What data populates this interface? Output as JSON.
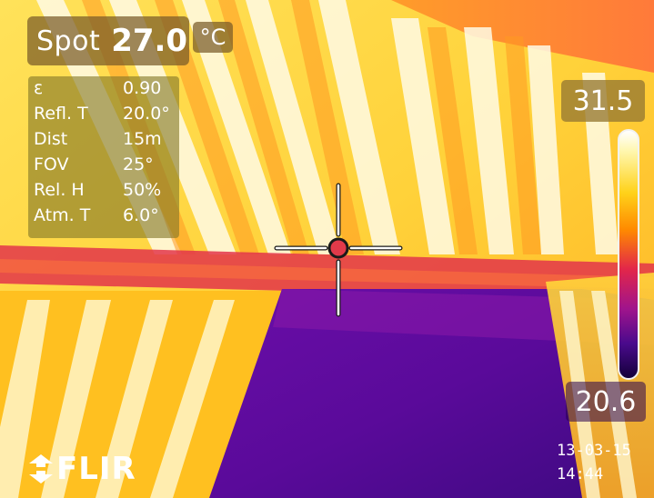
{
  "spot": {
    "label": "Spot",
    "value": "27.0",
    "unit": "°C"
  },
  "parameters": [
    {
      "name": "ε",
      "value": "0.90"
    },
    {
      "name": "Refl. T",
      "value": "20.0°"
    },
    {
      "name": "Dist",
      "value": "15m"
    },
    {
      "name": "FOV",
      "value": "25°"
    },
    {
      "name": "Rel. H",
      "value": "50%"
    },
    {
      "name": "Atm. T",
      "value": "6.0°"
    }
  ],
  "scale": {
    "max": "31.5",
    "min": "20.6"
  },
  "timestamp": {
    "date": "13-03-15",
    "time": "14:44"
  },
  "brand": "FLIR",
  "icons": {
    "logo": "flir-logo-icon",
    "crosshair": "spot-crosshair-icon"
  },
  "colors": {
    "hot": "#ffffff",
    "warm": "#ffb000",
    "mid": "#e2264a",
    "cool": "#4a0a8c",
    "cold": "#14003a"
  }
}
